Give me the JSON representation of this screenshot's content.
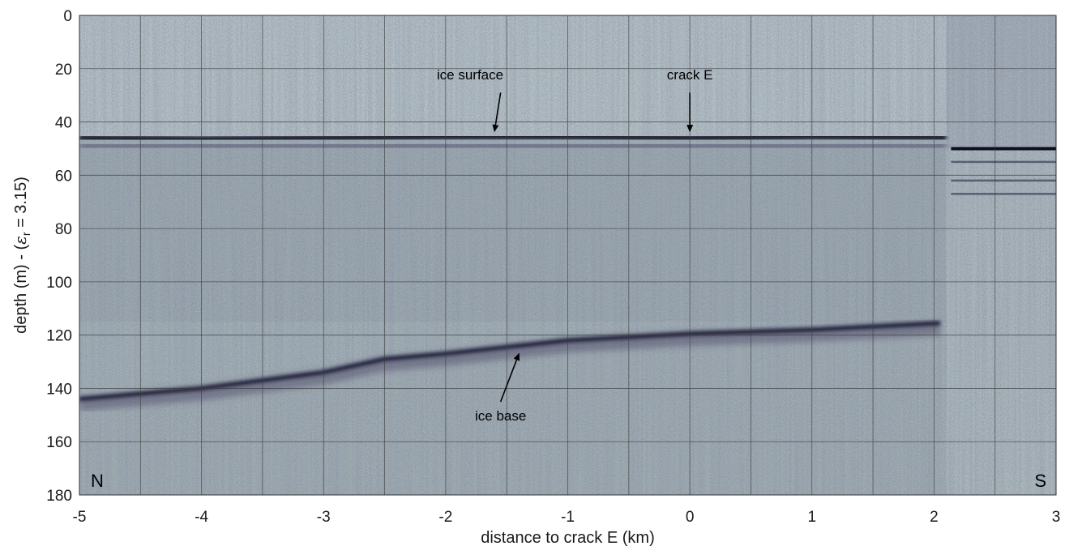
{
  "chart_data": {
    "type": "heatmap",
    "xlabel": "distance to crack E (km)",
    "ylabel_parts": [
      "depth (m) - (",
      "ε",
      "r",
      " = 3.15)"
    ],
    "xlim": [
      -5,
      3
    ],
    "ylim": [
      0,
      180
    ],
    "y_reversed": true,
    "x_ticks": [
      -5,
      -4,
      -3,
      -2,
      -1,
      0,
      1,
      2,
      3
    ],
    "y_ticks": [
      0,
      20,
      40,
      60,
      80,
      100,
      120,
      140,
      160,
      180
    ],
    "x_gridlines": [
      -5,
      -4.5,
      -4,
      -3.5,
      -3,
      -2.5,
      -2,
      -1.5,
      -1,
      -0.5,
      0,
      0.5,
      1,
      1.5,
      2,
      2.5,
      3
    ],
    "y_gridlines": [
      0,
      20,
      40,
      60,
      80,
      100,
      120,
      140,
      160,
      180
    ],
    "grid": true,
    "colormap": "bone (reversed)",
    "ice_surface_line": [
      [
        -5,
        46
      ],
      [
        -4,
        46.5
      ],
      [
        -3,
        46
      ],
      [
        -2,
        45.5
      ],
      [
        -1,
        45.5
      ],
      [
        0,
        46
      ],
      [
        1,
        45.5
      ],
      [
        2.1,
        45.8
      ]
    ],
    "ice_base_line": [
      [
        -5,
        144
      ],
      [
        -4.5,
        142
      ],
      [
        -4,
        140
      ],
      [
        -3,
        134
      ],
      [
        -2.5,
        129
      ],
      [
        -2,
        127
      ],
      [
        -1,
        122
      ],
      [
        0,
        119.5
      ],
      [
        1,
        118
      ],
      [
        2.05,
        115.5
      ]
    ],
    "south_surface_depth": 50,
    "south_layers": [
      55,
      62,
      67
    ],
    "annotations": [
      {
        "label": "ice surface",
        "text_x": -1.8,
        "text_y": 24,
        "arrow_from": [
          -1.55,
          29
        ],
        "arrow_to": [
          -1.6,
          43.5
        ]
      },
      {
        "label": "crack E",
        "text_x": 0,
        "text_y": 24,
        "arrow_from": [
          0.0,
          29
        ],
        "arrow_to": [
          0.0,
          43.5
        ]
      },
      {
        "label": "ice base",
        "text_x": -1.55,
        "text_y": 152,
        "arrow_from": [
          -1.55,
          145
        ],
        "arrow_to": [
          -1.4,
          127
        ]
      }
    ],
    "corner_labels": {
      "left": "N",
      "right": "S"
    }
  }
}
